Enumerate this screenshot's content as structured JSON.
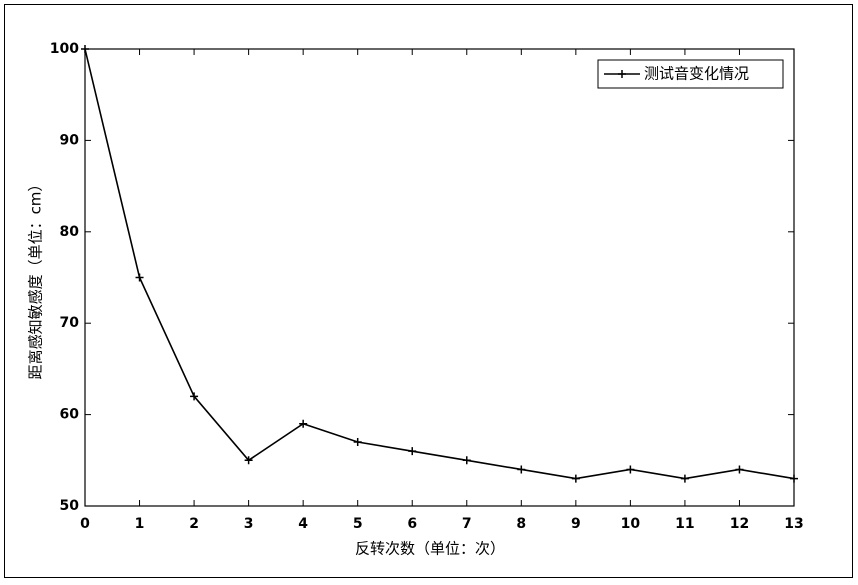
{
  "chart_data": {
    "type": "line",
    "xlabel": "反转次数（单位：次）",
    "ylabel": "距离感知敏感度（单位：cm）",
    "x": [
      0,
      1,
      2,
      3,
      4,
      5,
      6,
      7,
      8,
      9,
      10,
      11,
      12,
      13
    ],
    "series": [
      {
        "name": "测试音变化情况",
        "color": "#000000",
        "values": [
          100,
          75,
          62,
          55,
          59,
          57,
          56,
          55,
          54,
          53,
          54,
          53,
          54,
          53
        ]
      }
    ],
    "xlim": [
      0,
      13
    ],
    "xticks": [
      0,
      1,
      2,
      3,
      4,
      5,
      6,
      7,
      8,
      9,
      10,
      11,
      12,
      13
    ],
    "ylim": [
      50,
      100
    ],
    "yticks": [
      50,
      60,
      70,
      80,
      90,
      100
    ],
    "grid": false,
    "legend": "northeast",
    "marker": "+"
  }
}
